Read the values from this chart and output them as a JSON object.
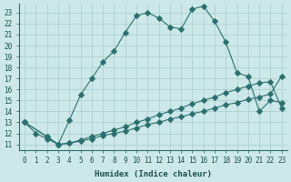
{
  "xlabel": "Humidex (Indice chaleur)",
  "bg_color": "#cce8e8",
  "grid_color": "#aacccc",
  "line_color": "#2d7070",
  "xlim": [
    -0.5,
    23.5
  ],
  "ylim": [
    10.5,
    23.8
  ],
  "yticks": [
    11,
    12,
    13,
    14,
    15,
    16,
    17,
    18,
    19,
    20,
    21,
    22,
    23
  ],
  "xticks": [
    0,
    1,
    2,
    3,
    4,
    5,
    6,
    7,
    8,
    9,
    10,
    11,
    12,
    13,
    14,
    15,
    16,
    17,
    18,
    19,
    20,
    21,
    22,
    23
  ],
  "curve1_x": [
    0,
    1,
    2,
    3,
    4,
    5,
    6,
    7,
    8,
    9,
    10,
    11,
    12,
    13,
    14,
    15,
    16,
    17,
    18,
    19,
    20,
    21,
    22,
    23
  ],
  "curve1_y": [
    13.0,
    12.0,
    11.5,
    11.0,
    13.2,
    15.5,
    17.0,
    18.5,
    19.5,
    21.2,
    22.7,
    23.0,
    22.5,
    21.7,
    21.5,
    23.3,
    23.6,
    22.2,
    20.3,
    17.5,
    17.2,
    14.0,
    15.0,
    14.8
  ],
  "curve2_x": [
    0,
    2,
    3,
    4,
    5,
    6,
    7,
    8,
    9,
    10,
    11,
    12,
    13,
    14,
    15,
    16,
    17,
    18,
    19,
    20,
    21,
    22,
    23
  ],
  "curve2_y": [
    13.0,
    11.7,
    11.0,
    11.1,
    11.3,
    11.5,
    11.8,
    12.0,
    12.2,
    12.5,
    12.8,
    13.0,
    13.3,
    13.5,
    13.8,
    14.0,
    14.3,
    14.6,
    14.8,
    15.1,
    15.3,
    15.6,
    17.2
  ],
  "curve3_x": [
    0,
    2,
    3,
    4,
    5,
    6,
    7,
    8,
    9,
    10,
    11,
    12,
    13,
    14,
    15,
    16,
    17,
    18,
    19,
    20,
    21,
    22,
    23
  ],
  "curve3_y": [
    13.0,
    11.7,
    11.0,
    11.1,
    11.4,
    11.7,
    12.0,
    12.3,
    12.6,
    13.0,
    13.3,
    13.7,
    14.0,
    14.3,
    14.7,
    15.0,
    15.3,
    15.7,
    16.0,
    16.3,
    16.6,
    16.7,
    14.3
  ]
}
